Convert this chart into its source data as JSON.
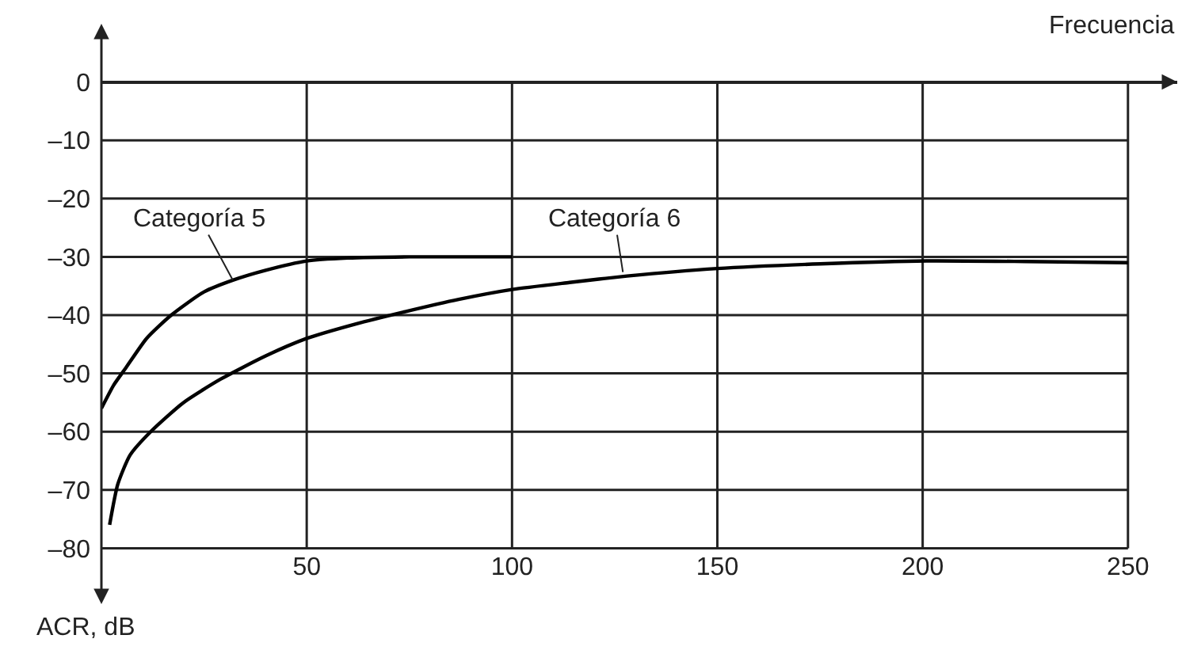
{
  "chart_data": {
    "type": "line",
    "xlabel": "Frecuencia",
    "ylabel": "ACR, dB",
    "xlim": [
      0,
      262
    ],
    "ylim": [
      -90,
      10
    ],
    "xticks": [
      50,
      100,
      150,
      200,
      250
    ],
    "yticks": [
      0,
      {
        "value": -10,
        "label": "–10"
      },
      {
        "value": -20,
        "label": "–20"
      },
      {
        "value": -30,
        "label": "–30"
      },
      {
        "value": -40,
        "label": "–40"
      },
      {
        "value": -50,
        "label": "–50"
      },
      {
        "value": -60,
        "label": "–60"
      },
      {
        "value": -70,
        "label": "–70"
      },
      {
        "value": -80,
        "label": "–80"
      }
    ],
    "grid": true,
    "marker": "none",
    "line_style": "solid",
    "series": [
      {
        "color": "#000000",
        "x": [
          0,
          3,
          6,
          11,
          17,
          25,
          32,
          40,
          50,
          60,
          75,
          100
        ],
        "values": [
          -56,
          -52,
          -49,
          -44,
          -40,
          -36,
          -34,
          -32.3,
          -30.7,
          -30.2,
          -30,
          -30
        ]
      },
      {
        "color": "#000000",
        "x": [
          2,
          4,
          7,
          12,
          20,
          29,
          40,
          50,
          62,
          74,
          87,
          100,
          114,
          128,
          150,
          175,
          201,
          225,
          250
        ],
        "values": [
          -76,
          -69,
          -64,
          -60,
          -55,
          -51,
          -47,
          -44,
          -41.5,
          -39.4,
          -37.3,
          -35.6,
          -34.4,
          -33.3,
          -32,
          -31.2,
          -30.7,
          -30.8,
          -31
        ]
      }
    ],
    "annotations": [
      {
        "text": "Categoría 5",
        "x": 32,
        "y": -34
      },
      {
        "text": "Categoría 6",
        "x": 127,
        "y": -32.6
      }
    ]
  }
}
